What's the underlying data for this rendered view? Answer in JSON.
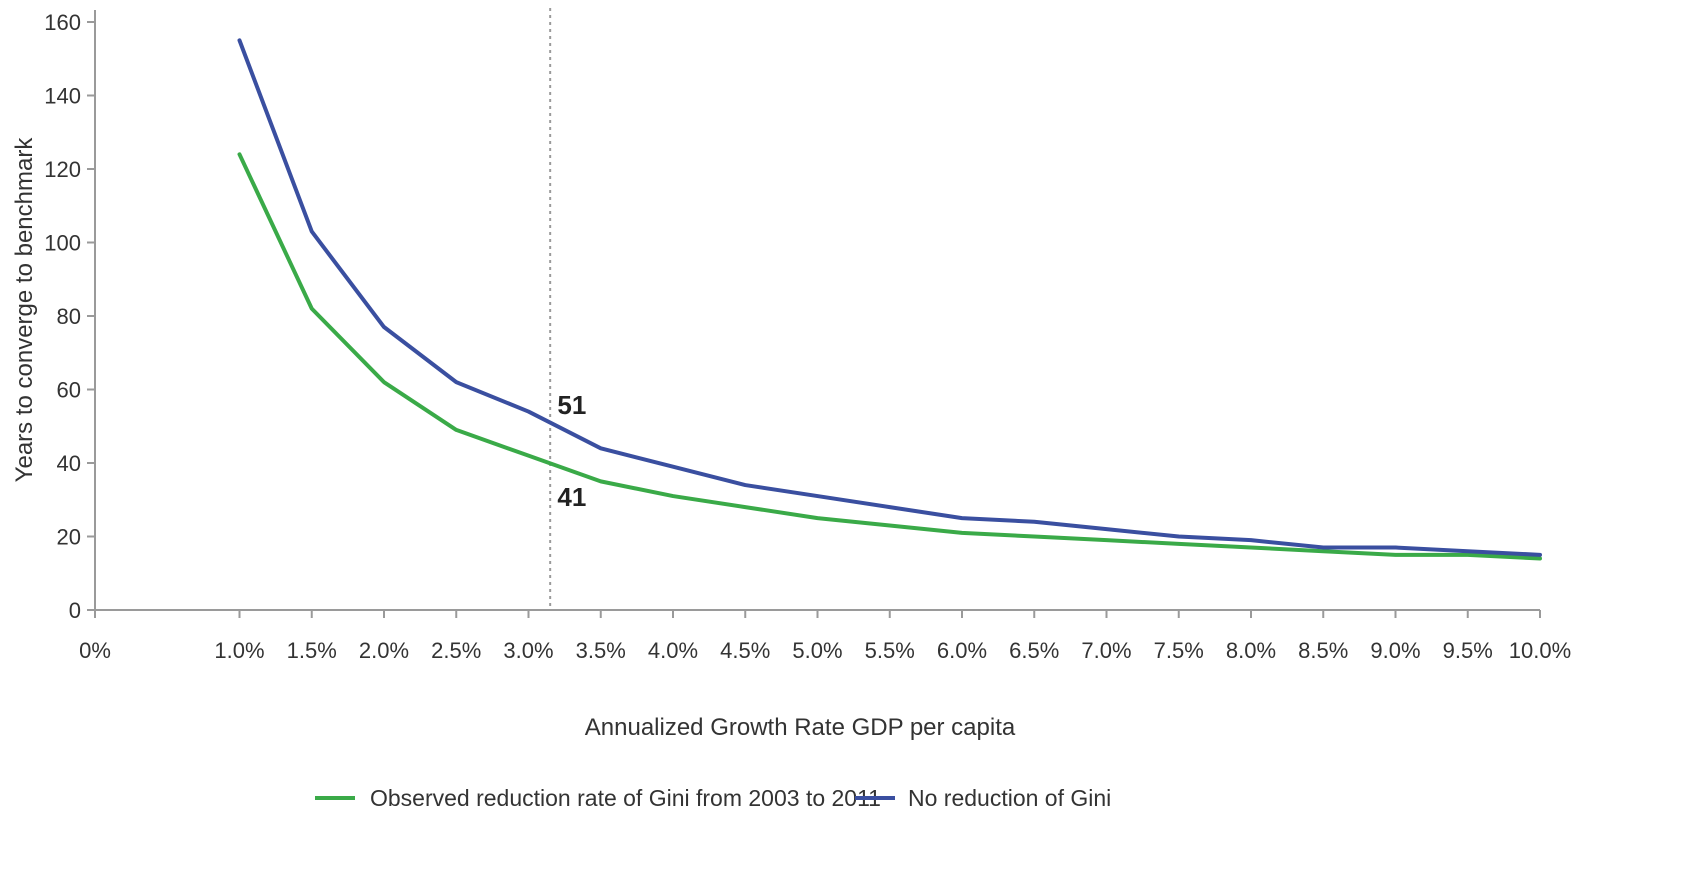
{
  "chart_data": {
    "type": "line",
    "title": "",
    "xlabel": "Annualized Growth Rate GDP per capita",
    "ylabel": "Years to converge to benchmark",
    "x_tick_labels": [
      "0%",
      "1.0%",
      "1.5%",
      "2.0%",
      "2.5%",
      "3.0%",
      "3.5%",
      "4.0%",
      "4.5%",
      "5.0%",
      "5.5%",
      "6.0%",
      "6.5%",
      "7.0%",
      "7.5%",
      "8.0%",
      "8.5%",
      "9.0%",
      "9.5%",
      "10.0%"
    ],
    "y_ticks": [
      0,
      20,
      40,
      60,
      80,
      100,
      120,
      140,
      160
    ],
    "ylim": [
      0,
      160
    ],
    "x": [
      1.0,
      1.5,
      2.0,
      2.5,
      3.0,
      3.5,
      4.0,
      4.5,
      5.0,
      5.5,
      6.0,
      6.5,
      7.0,
      7.5,
      8.0,
      8.5,
      9.0,
      9.5,
      10.0
    ],
    "series": [
      {
        "name": "Observed reduction rate of Gini from 2003 to 2011",
        "color": "#3aaa48",
        "values": [
          124,
          82,
          62,
          49,
          42,
          35,
          31,
          28,
          25,
          23,
          21,
          20,
          19,
          18,
          17,
          16,
          15,
          15,
          14
        ]
      },
      {
        "name": "No reduction of Gini",
        "color": "#3a4fa0",
        "values": [
          155,
          103,
          77,
          62,
          54,
          44,
          39,
          34,
          31,
          28,
          25,
          24,
          22,
          20,
          19,
          17,
          17,
          16,
          15
        ]
      }
    ],
    "reference_line": {
      "x": 3.15,
      "style": "dotted",
      "color": "#9a9a9a"
    },
    "annotations": [
      {
        "text": "51",
        "x": 3.2,
        "y": 55
      },
      {
        "text": "41",
        "x": 3.2,
        "y": 30
      }
    ],
    "grid": false,
    "legend_position": "bottom"
  }
}
